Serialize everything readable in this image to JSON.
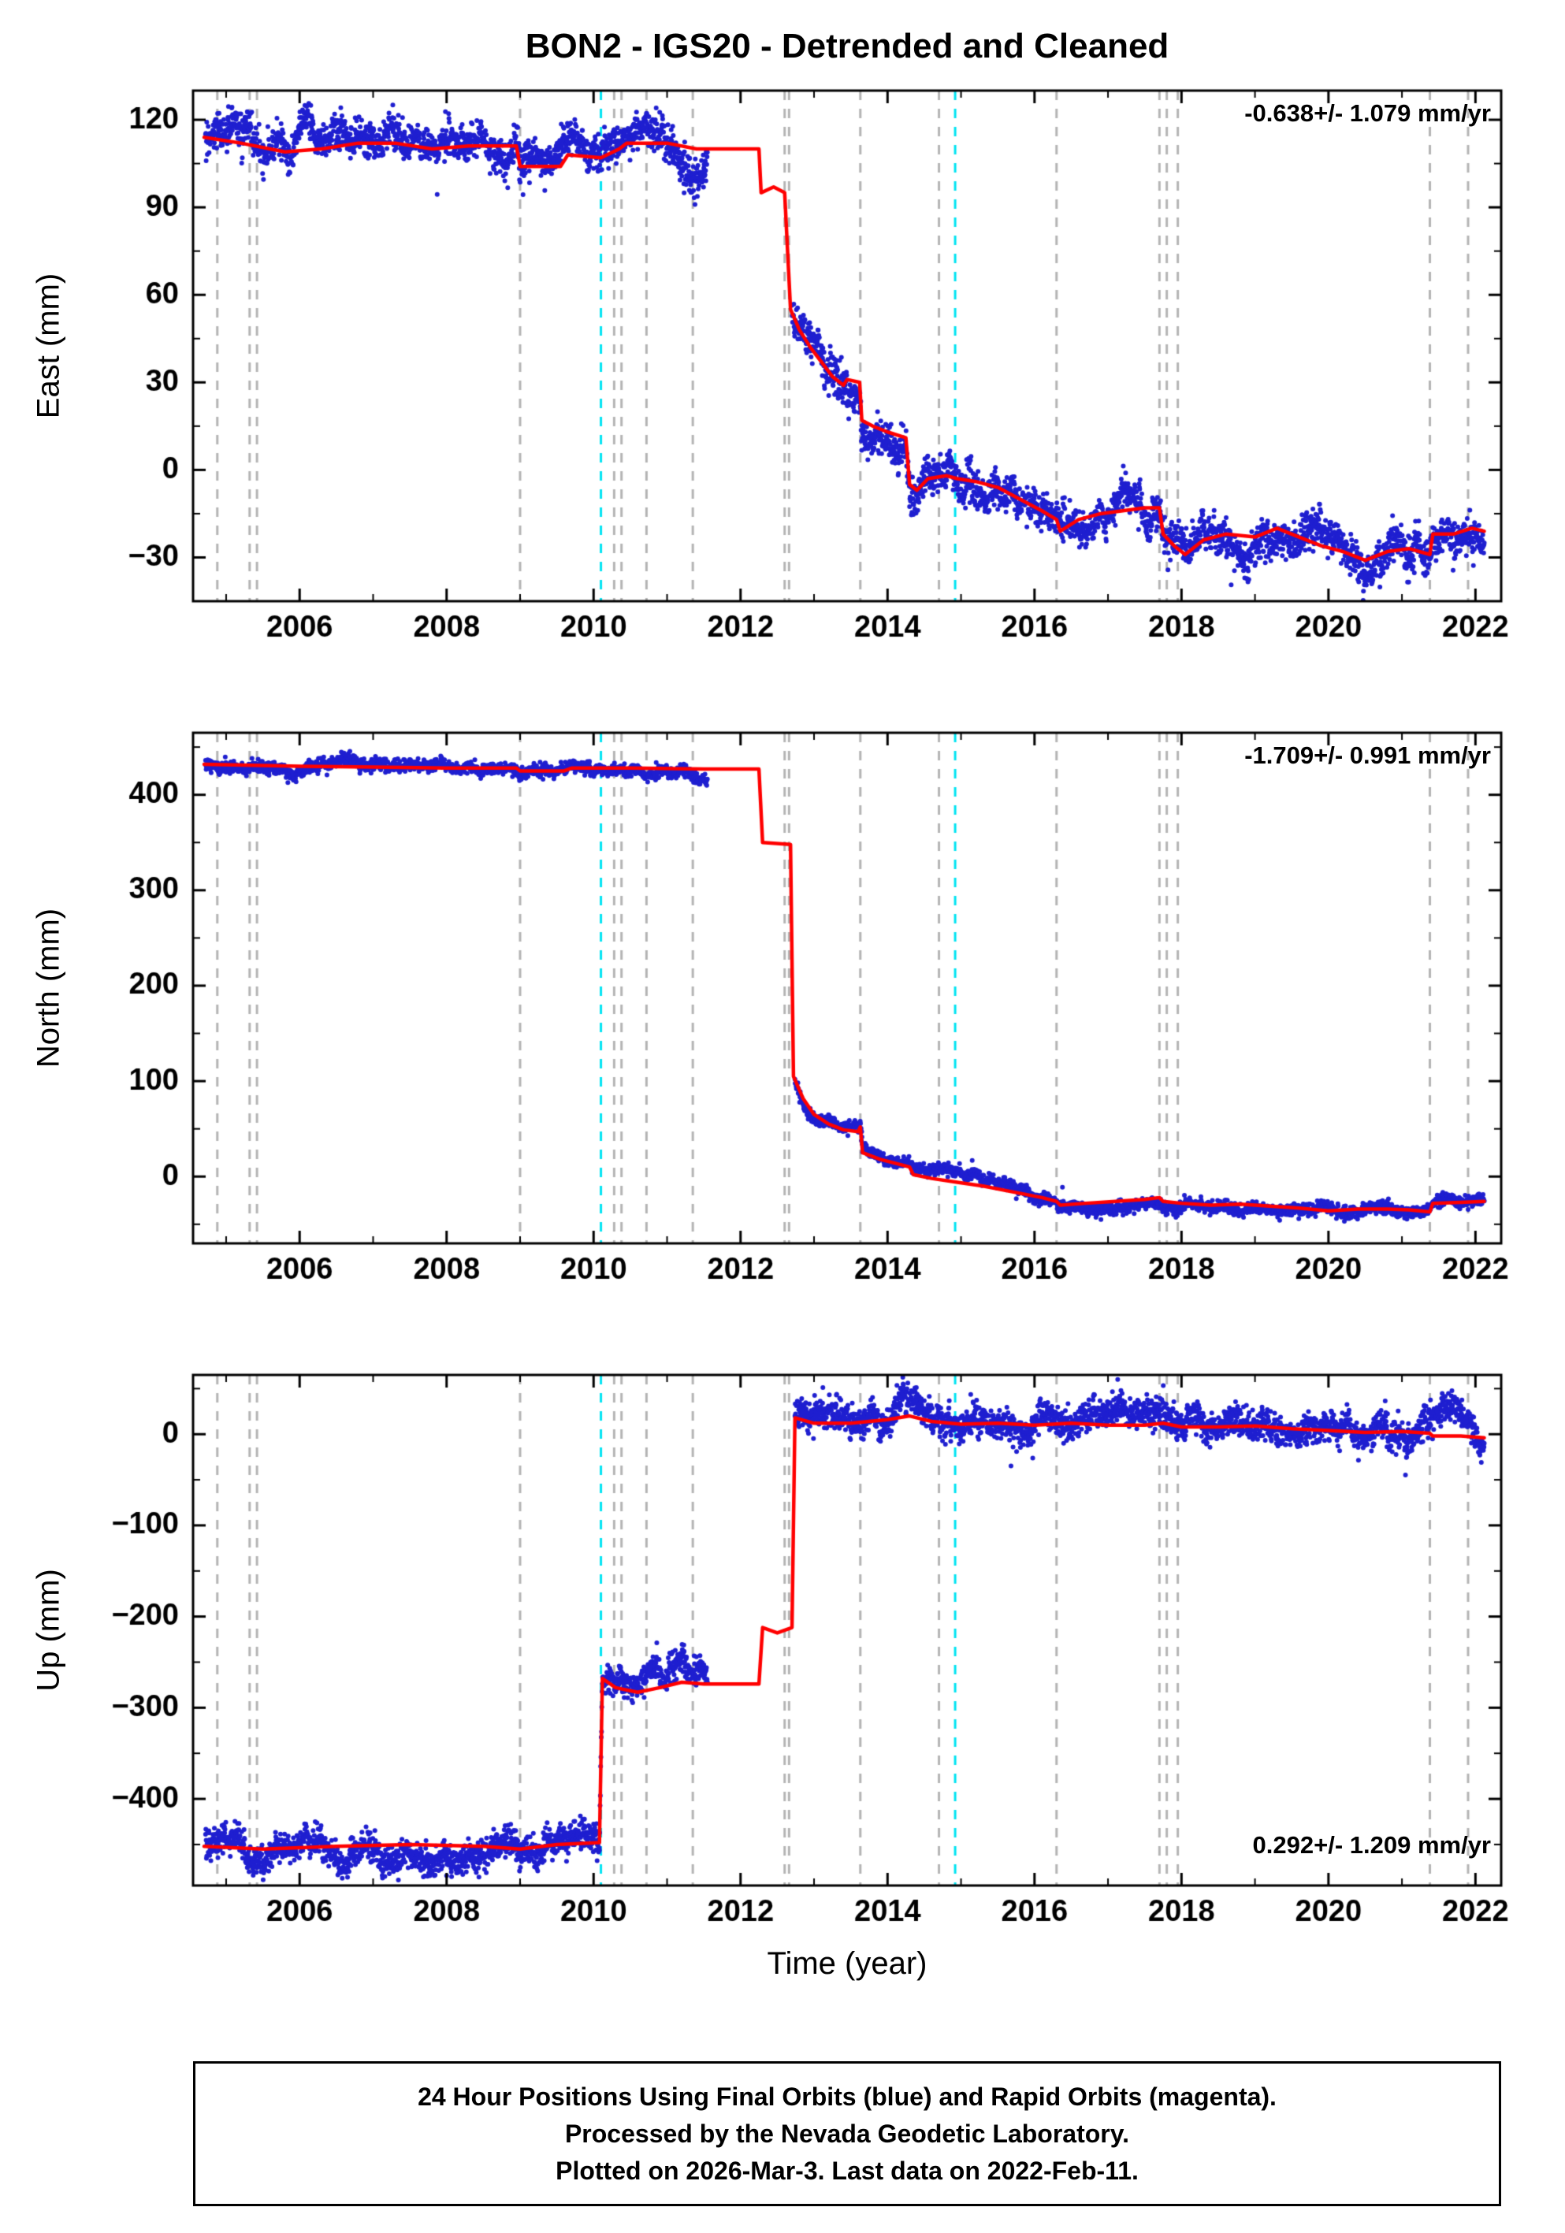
{
  "title": "BON2 - IGS20 - Detrended and Cleaned",
  "xlabel": "Time (year)",
  "caption": {
    "lines": [
      "24 Hour Positions Using Final Orbits (blue) and Rapid Orbits (magenta).",
      "Processed by the Nevada Geodetic Laboratory.",
      "Plotted on 2026-Mar-3. Last data on 2022-Feb-11."
    ]
  },
  "colors": {
    "scatter_blue": "#1f1fd0",
    "model_red": "#ff0000",
    "event_gray": "#b4b4b4",
    "event_cyan": "#00e4f2",
    "frame": "#000000"
  },
  "chart_data": {
    "type": "scatter",
    "x_range": [
      2004.55,
      2022.35
    ],
    "x_major_ticks": [
      2006,
      2008,
      2010,
      2012,
      2014,
      2016,
      2018,
      2020,
      2022
    ],
    "x_minor_step": 1,
    "event_lines_gray": [
      2004.88,
      2005.32,
      2005.42,
      2009.0,
      2010.28,
      2010.38,
      2010.72,
      2011.35,
      2012.6,
      2012.66,
      2013.63,
      2014.7,
      2016.3,
      2017.7,
      2017.8,
      2017.95,
      2021.38,
      2021.9
    ],
    "event_lines_cyan": [
      2010.1,
      2014.92
    ],
    "panels": [
      {
        "id": "east",
        "ylabel": "East (mm)",
        "ylim": [
          -45,
          130
        ],
        "yticks": [
          -30,
          0,
          30,
          60,
          90,
          120
        ],
        "y_minor_step": 15,
        "rate_label": "-0.638+/- 1.079 mm/yr",
        "rate_pos": "top",
        "noise_sigma": 3.0,
        "data_segments": [
          [
            2004.72,
            2011.55
          ],
          [
            2012.7,
            2022.12
          ]
        ],
        "model": [
          [
            2004.7,
            114
          ],
          [
            2005.2,
            112
          ],
          [
            2005.8,
            109
          ],
          [
            2006.3,
            110
          ],
          [
            2006.8,
            112
          ],
          [
            2007.3,
            112
          ],
          [
            2007.8,
            110
          ],
          [
            2008.3,
            111
          ],
          [
            2008.95,
            111
          ],
          [
            2009.0,
            104
          ],
          [
            2009.55,
            104
          ],
          [
            2009.65,
            108
          ],
          [
            2010.1,
            107
          ],
          [
            2010.35,
            110
          ],
          [
            2010.45,
            112
          ],
          [
            2011.0,
            112
          ],
          [
            2011.4,
            110
          ],
          [
            2012.25,
            110
          ],
          [
            2012.28,
            95
          ],
          [
            2012.45,
            97
          ],
          [
            2012.6,
            95
          ],
          [
            2012.68,
            55
          ],
          [
            2012.8,
            48
          ],
          [
            2012.95,
            42
          ],
          [
            2013.1,
            37
          ],
          [
            2013.25,
            32
          ],
          [
            2013.4,
            29
          ],
          [
            2013.45,
            31
          ],
          [
            2013.62,
            30
          ],
          [
            2013.65,
            17
          ],
          [
            2013.8,
            15
          ],
          [
            2014.0,
            13
          ],
          [
            2014.25,
            11
          ],
          [
            2014.3,
            -5
          ],
          [
            2014.4,
            -7
          ],
          [
            2014.55,
            -3
          ],
          [
            2014.8,
            -2
          ],
          [
            2014.95,
            -3
          ],
          [
            2015.2,
            -4
          ],
          [
            2015.5,
            -6
          ],
          [
            2015.8,
            -10
          ],
          [
            2016.1,
            -14
          ],
          [
            2016.3,
            -17
          ],
          [
            2016.35,
            -21
          ],
          [
            2016.6,
            -17
          ],
          [
            2016.9,
            -15
          ],
          [
            2017.2,
            -14
          ],
          [
            2017.5,
            -13
          ],
          [
            2017.7,
            -13
          ],
          [
            2017.75,
            -22
          ],
          [
            2017.9,
            -26
          ],
          [
            2018.05,
            -29
          ],
          [
            2018.3,
            -24
          ],
          [
            2018.6,
            -22
          ],
          [
            2019.0,
            -23
          ],
          [
            2019.3,
            -20
          ],
          [
            2019.6,
            -23
          ],
          [
            2019.9,
            -26
          ],
          [
            2020.2,
            -28
          ],
          [
            2020.5,
            -31
          ],
          [
            2020.8,
            -28
          ],
          [
            2021.1,
            -27
          ],
          [
            2021.38,
            -29
          ],
          [
            2021.42,
            -22
          ],
          [
            2021.7,
            -22
          ],
          [
            2021.95,
            -20
          ],
          [
            2022.12,
            -21
          ]
        ]
      },
      {
        "id": "north",
        "ylabel": "North (mm)",
        "ylim": [
          -70,
          465
        ],
        "yticks": [
          0,
          100,
          200,
          300,
          400
        ],
        "y_minor_step": 50,
        "rate_label": "-1.709+/- 0.991 mm/yr",
        "rate_pos": "top",
        "noise_sigma": 3.0,
        "data_segments": [
          [
            2004.72,
            2011.55
          ],
          [
            2012.74,
            2022.12
          ]
        ],
        "model": [
          [
            2004.7,
            432
          ],
          [
            2006.0,
            430
          ],
          [
            2007.0,
            429
          ],
          [
            2008.0,
            428
          ],
          [
            2008.95,
            428
          ],
          [
            2009.0,
            425
          ],
          [
            2009.6,
            425
          ],
          [
            2009.7,
            428
          ],
          [
            2010.5,
            428
          ],
          [
            2011.5,
            427
          ],
          [
            2012.25,
            427
          ],
          [
            2012.3,
            350
          ],
          [
            2012.68,
            348
          ],
          [
            2012.72,
            105
          ],
          [
            2012.85,
            82
          ],
          [
            2013.0,
            65
          ],
          [
            2013.2,
            55
          ],
          [
            2013.4,
            49
          ],
          [
            2013.6,
            47
          ],
          [
            2013.63,
            52
          ],
          [
            2013.66,
            25
          ],
          [
            2013.9,
            18
          ],
          [
            2014.2,
            12
          ],
          [
            2014.3,
            10
          ],
          [
            2014.35,
            2
          ],
          [
            2014.6,
            -2
          ],
          [
            2014.95,
            -6
          ],
          [
            2015.3,
            -10
          ],
          [
            2015.7,
            -16
          ],
          [
            2016.1,
            -22
          ],
          [
            2016.3,
            -26
          ],
          [
            2016.35,
            -30
          ],
          [
            2016.7,
            -28
          ],
          [
            2017.1,
            -26
          ],
          [
            2017.5,
            -24
          ],
          [
            2017.7,
            -22
          ],
          [
            2017.75,
            -26
          ],
          [
            2018.0,
            -28
          ],
          [
            2018.4,
            -30
          ],
          [
            2018.8,
            -29
          ],
          [
            2019.2,
            -31
          ],
          [
            2019.6,
            -33
          ],
          [
            2020.0,
            -36
          ],
          [
            2020.4,
            -34
          ],
          [
            2020.8,
            -34
          ],
          [
            2021.1,
            -35
          ],
          [
            2021.38,
            -37
          ],
          [
            2021.42,
            -28
          ],
          [
            2021.8,
            -27
          ],
          [
            2022.12,
            -26
          ]
        ]
      },
      {
        "id": "up",
        "ylabel": "Up (mm)",
        "ylim": [
          -495,
          65
        ],
        "yticks": [
          -400,
          -300,
          -200,
          -100,
          0
        ],
        "y_minor_step": 50,
        "rate_label": "0.292+/- 1.209 mm/yr",
        "rate_pos": "bottom",
        "noise_sigma": 8.0,
        "data_segments": [
          [
            2004.72,
            2011.55
          ],
          [
            2012.74,
            2022.12
          ]
        ],
        "model": [
          [
            2004.7,
            -452
          ],
          [
            2005.5,
            -455
          ],
          [
            2006.5,
            -452
          ],
          [
            2007.5,
            -450
          ],
          [
            2008.5,
            -452
          ],
          [
            2009.0,
            -455
          ],
          [
            2009.5,
            -450
          ],
          [
            2010.08,
            -448
          ],
          [
            2010.12,
            -268
          ],
          [
            2010.3,
            -278
          ],
          [
            2010.6,
            -283
          ],
          [
            2010.9,
            -278
          ],
          [
            2011.2,
            -272
          ],
          [
            2011.5,
            -274
          ],
          [
            2012.25,
            -274
          ],
          [
            2012.3,
            -212
          ],
          [
            2012.5,
            -218
          ],
          [
            2012.7,
            -212
          ],
          [
            2012.74,
            18
          ],
          [
            2013.0,
            12
          ],
          [
            2013.5,
            12
          ],
          [
            2014.0,
            16
          ],
          [
            2014.3,
            20
          ],
          [
            2014.6,
            14
          ],
          [
            2015.0,
            11
          ],
          [
            2015.5,
            12
          ],
          [
            2016.0,
            10
          ],
          [
            2016.5,
            12
          ],
          [
            2017.0,
            10
          ],
          [
            2017.5,
            10
          ],
          [
            2017.75,
            12
          ],
          [
            2018.0,
            8
          ],
          [
            2018.5,
            8
          ],
          [
            2019.0,
            9
          ],
          [
            2019.5,
            6
          ],
          [
            2020.0,
            4
          ],
          [
            2020.5,
            2
          ],
          [
            2021.0,
            3
          ],
          [
            2021.38,
            1
          ],
          [
            2021.42,
            -2
          ],
          [
            2021.8,
            -2
          ],
          [
            2022.12,
            -4
          ]
        ]
      }
    ]
  }
}
